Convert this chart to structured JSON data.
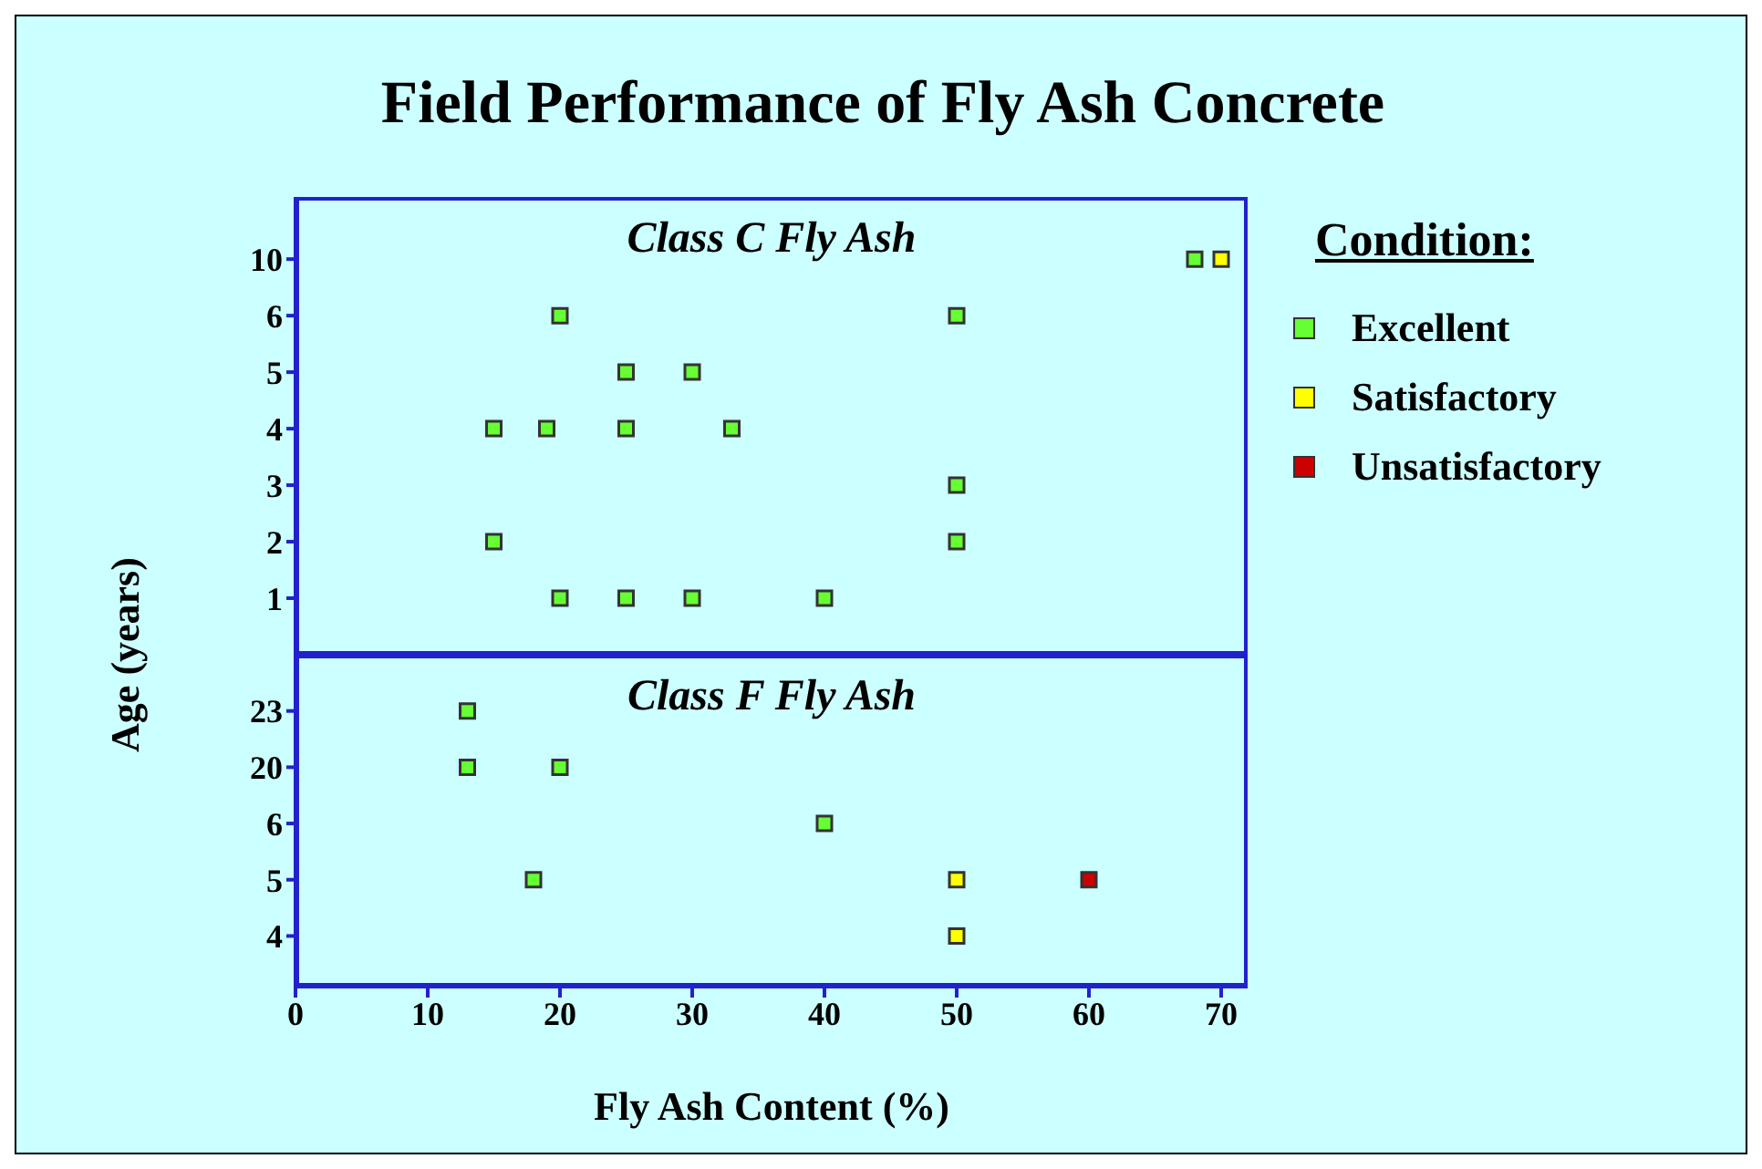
{
  "chart_data": [
    {
      "type": "scatter",
      "title": "Field Performance of Fly Ash Concrete",
      "ylabel": "Age (years)",
      "annotations": [
        "Class C Fly Ash"
      ],
      "orientation": "horizontal",
      "marker": "square",
      "categories": [
        "10",
        "6",
        "5",
        "4",
        "3",
        "2",
        "1"
      ],
      "xlim": [
        0,
        72
      ],
      "xticks": [
        0,
        10,
        20,
        30,
        40,
        50,
        60,
        70
      ],
      "tick_labels": "y",
      "series": [
        {
          "color": "#66ff33",
          "x": [
            "10",
            "6",
            "6",
            "5",
            "5",
            "4",
            "4",
            "4",
            "4",
            "3",
            "2",
            "2",
            "1",
            "1",
            "1",
            "1"
          ],
          "values": [
            68,
            20,
            50,
            25,
            30,
            15,
            19,
            25,
            33,
            50,
            15,
            50,
            20,
            25,
            30,
            40
          ]
        },
        {
          "color": "#ffff00",
          "x": [
            "10"
          ],
          "values": [
            70
          ]
        }
      ]
    },
    {
      "type": "scatter",
      "xlabel": "Fly Ash Content (%)",
      "annotations": [
        "Class F Fly Ash"
      ],
      "orientation": "horizontal",
      "legend": "right",
      "legend_title": "Condition:",
      "marker": "square",
      "categories": [
        "23",
        "20",
        "6",
        "5",
        "4"
      ],
      "xlim": [
        0,
        72
      ],
      "xticks": [
        0,
        10,
        20,
        30,
        40,
        50,
        60,
        70
      ],
      "series": [
        {
          "name": "Excellent",
          "color": "#66ff33",
          "x": [
            "23",
            "20",
            "20",
            "6",
            "5"
          ],
          "values": [
            13,
            13,
            20,
            40,
            18
          ]
        },
        {
          "name": "Satisfactory",
          "color": "#ffff00",
          "x": [
            "5",
            "4"
          ],
          "values": [
            50,
            50
          ]
        },
        {
          "name": "Unsatisfactory",
          "color": "#cc0000",
          "x": [
            "5"
          ],
          "values": [
            60
          ]
        }
      ]
    }
  ]
}
